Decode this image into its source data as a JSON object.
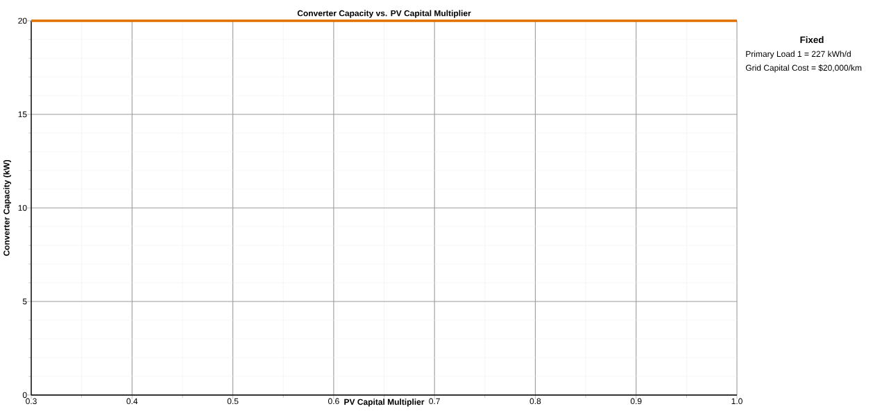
{
  "chart_data": {
    "type": "line",
    "title": "Converter Capacity vs. PV Capital Multiplier",
    "xlabel": "PV Capital Multiplier",
    "ylabel": "Converter Capacity (kW)",
    "x": [
      0.3,
      1.0
    ],
    "series": [
      {
        "color": "#e07000",
        "values": [
          20,
          20
        ]
      }
    ],
    "xlim": [
      0.3,
      1.0
    ],
    "xticks": [
      0.3,
      0.4,
      0.5,
      0.6,
      0.7,
      0.8,
      0.9,
      {
        "value": 1.0,
        "label": "1.0"
      }
    ],
    "ylim": [
      0,
      20
    ],
    "yticks": [
      0,
      5,
      10,
      15,
      20
    ],
    "grid": true,
    "annotations": [
      "Fixed",
      "Primary Load 1 = 227 kWh/d",
      "Grid Capital Cost = $20,000/km"
    ]
  }
}
